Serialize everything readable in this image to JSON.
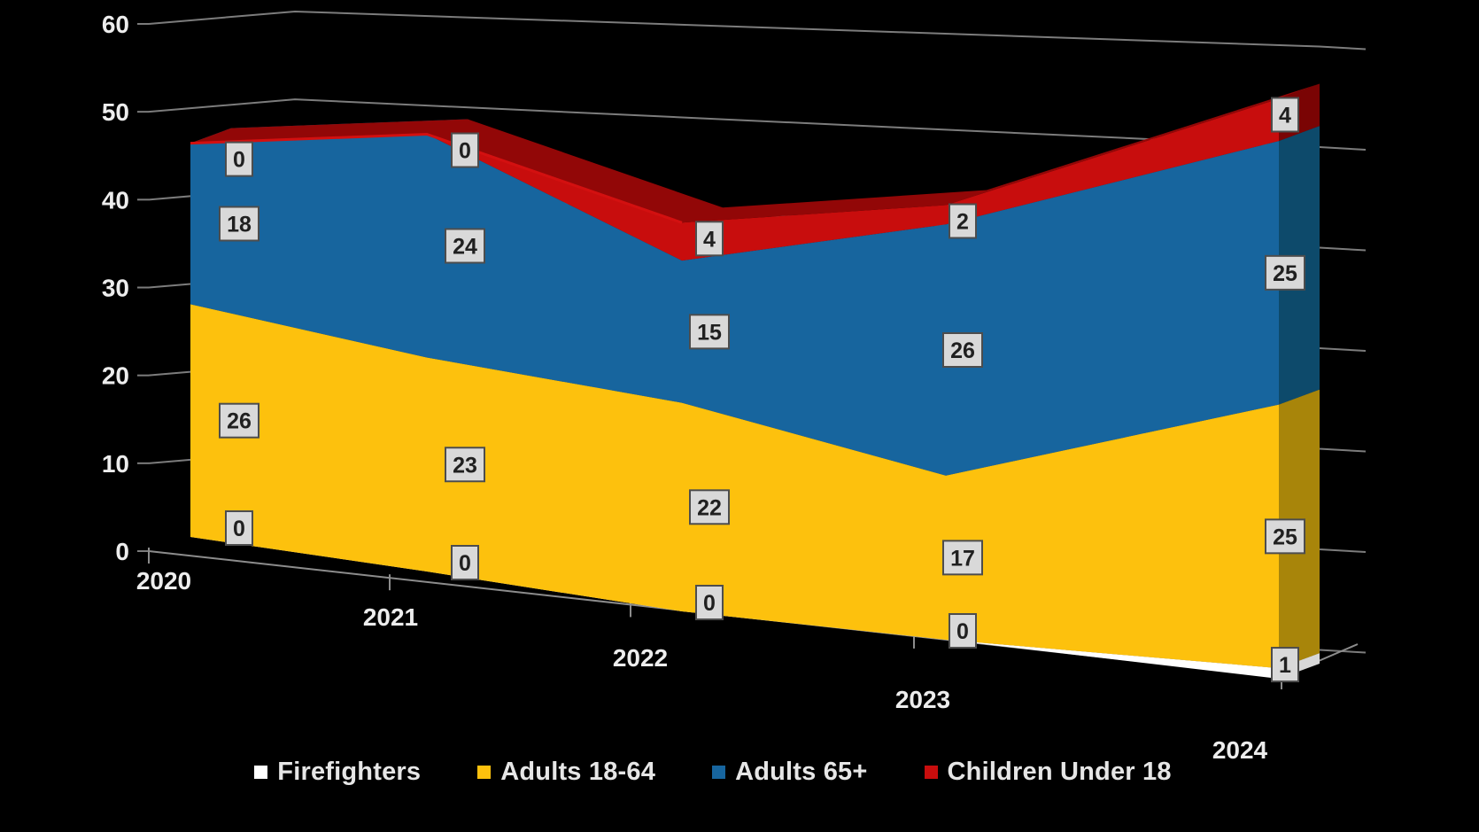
{
  "chart_data": {
    "type": "area",
    "projection": "3d-stacked",
    "title": "",
    "categories": [
      "2020",
      "2021",
      "2022",
      "2023",
      "2024"
    ],
    "series": [
      {
        "name": "Firefighters",
        "values": [
          0,
          0,
          0,
          0,
          1
        ],
        "color": "#FFFFFF",
        "side_color": "#D8D8D8",
        "top_color": "#E8E8E8"
      },
      {
        "name": "Adults 18-64",
        "values": [
          26,
          23,
          22,
          17,
          25
        ],
        "color": "#FDC10D",
        "side_color": "#A8850A",
        "top_color": "#C79E0B"
      },
      {
        "name": "Adults 65+",
        "values": [
          18,
          24,
          15,
          26,
          25
        ],
        "color": "#17659E",
        "side_color": "#0D4A6B",
        "top_color": "#0F567D"
      },
      {
        "name": "Children Under 18",
        "values": [
          0,
          0,
          4,
          2,
          4
        ],
        "color": "#C80D0D",
        "side_color": "#7A0404",
        "top_color": "#920707",
        "edge_color": "#D31010"
      }
    ],
    "yticks": [
      0,
      10,
      20,
      30,
      40,
      50,
      60
    ],
    "ylim": [
      0,
      60
    ],
    "grid": true,
    "legend_position": "bottom",
    "background": "#000000",
    "axis_text_color": "#EDEDED",
    "grid_color": "#7C7C7C",
    "floor_color": "#8C8C8C",
    "data_label_style": {
      "bg": "#D9D9D9",
      "border": "#4D4D4D",
      "text": "#202020"
    }
  }
}
